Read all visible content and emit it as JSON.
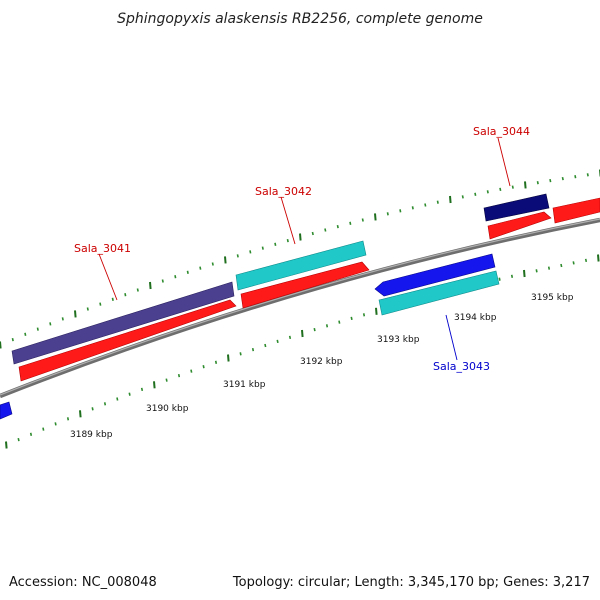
{
  "title": "Sphingopyxis alaskensis RB2256, complete genome",
  "footer": {
    "accession": "Accession: NC_008048",
    "summary": "Topology: circular; Length: 3,345,170 bp; Genes: 3,217"
  },
  "colors": {
    "backbone": "#8c8c8c",
    "tick_major": "#1f6f1f",
    "tick_minor": "#2e8b2e",
    "cds_red": "#ff1a1a",
    "gene_purple": "#4b3f8f",
    "gene_cyan": "#21c8c8",
    "gene_blue": "#1515ee",
    "gene_navy": "#0a0a78",
    "label_forward": "#cc0000",
    "label_reverse": "#0000cc"
  },
  "scale": {
    "tick_labels": [
      "3189 kbp",
      "3190 kbp",
      "3191 kbp",
      "3192 kbp",
      "3193 kbp",
      "3194 kbp",
      "3195 kbp"
    ]
  },
  "gene_labels": [
    {
      "id": "sala-3041",
      "text": "Sala_3041",
      "strand": "forward"
    },
    {
      "id": "sala-3042",
      "text": "Sala_3042",
      "strand": "forward"
    },
    {
      "id": "sala-3043",
      "text": "Sala_3043",
      "strand": "reverse"
    },
    {
      "id": "sala-3044",
      "text": "Sala_3044",
      "strand": "forward"
    }
  ]
}
